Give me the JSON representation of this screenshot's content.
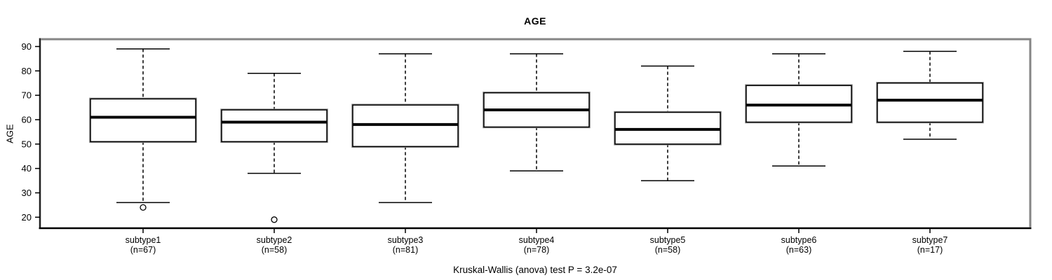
{
  "chart_data": {
    "type": "boxplot",
    "title": "AGE",
    "ylabel": "AGE",
    "xlabel": "",
    "caption": "Kruskal-Wallis (anova) test P = 3.2e-07",
    "ylim": [
      15.5,
      93
    ],
    "yticks": [
      20,
      30,
      40,
      50,
      60,
      70,
      80,
      90
    ],
    "grid": false,
    "legend_position": "none",
    "categories": [
      "subtype1",
      "subtype2",
      "subtype3",
      "subtype4",
      "subtype5",
      "subtype6",
      "subtype7"
    ],
    "category_counts": [
      "(n=67)",
      "(n=58)",
      "(n=81)",
      "(n=78)",
      "(n=58)",
      "(n=63)",
      "(n=17)"
    ],
    "series": [
      {
        "name": "subtype1",
        "whisker_low": 26,
        "q1": 51,
        "median": 61,
        "q3": 68.5,
        "whisker_high": 89,
        "outliers": [
          24
        ]
      },
      {
        "name": "subtype2",
        "whisker_low": 38,
        "q1": 51,
        "median": 59,
        "q3": 64,
        "whisker_high": 79,
        "outliers": [
          19
        ]
      },
      {
        "name": "subtype3",
        "whisker_low": 26,
        "q1": 49,
        "median": 58,
        "q3": 66,
        "whisker_high": 87,
        "outliers": []
      },
      {
        "name": "subtype4",
        "whisker_low": 39,
        "q1": 57,
        "median": 64,
        "q3": 71,
        "whisker_high": 87,
        "outliers": []
      },
      {
        "name": "subtype5",
        "whisker_low": 35,
        "q1": 50,
        "median": 56,
        "q3": 63,
        "whisker_high": 82,
        "outliers": []
      },
      {
        "name": "subtype6",
        "whisker_low": 41,
        "q1": 59,
        "median": 66,
        "q3": 74,
        "whisker_high": 87,
        "outliers": []
      },
      {
        "name": "subtype7",
        "whisker_low": 52,
        "q1": 59,
        "median": 68,
        "q3": 75,
        "whisker_high": 88,
        "outliers": []
      }
    ],
    "colors": {
      "stroke": "#000000",
      "box_fill": "#ffffff",
      "frame_shadow": "#858585",
      "background": "#ffffff"
    }
  }
}
